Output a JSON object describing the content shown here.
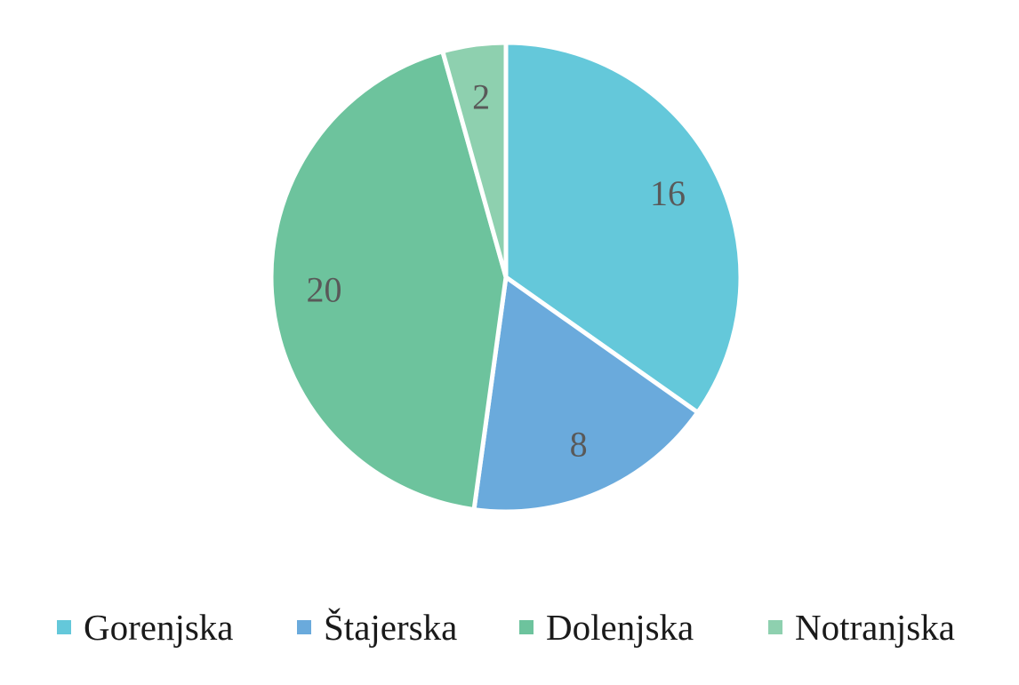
{
  "chart_data": {
    "type": "pie",
    "title": "",
    "categories": [
      "Gorenjska",
      "Štajerska",
      "Dolenjska",
      "Notranjska"
    ],
    "values": [
      16,
      8,
      20,
      2
    ],
    "colors": [
      "#64c8da",
      "#6aaadc",
      "#6dc39d",
      "#8ed0af"
    ],
    "data_labels": [
      "16",
      "8",
      "20",
      "2"
    ],
    "start_angle": "12 o'clock",
    "direction": "clockwise",
    "legend_position": "bottom"
  }
}
